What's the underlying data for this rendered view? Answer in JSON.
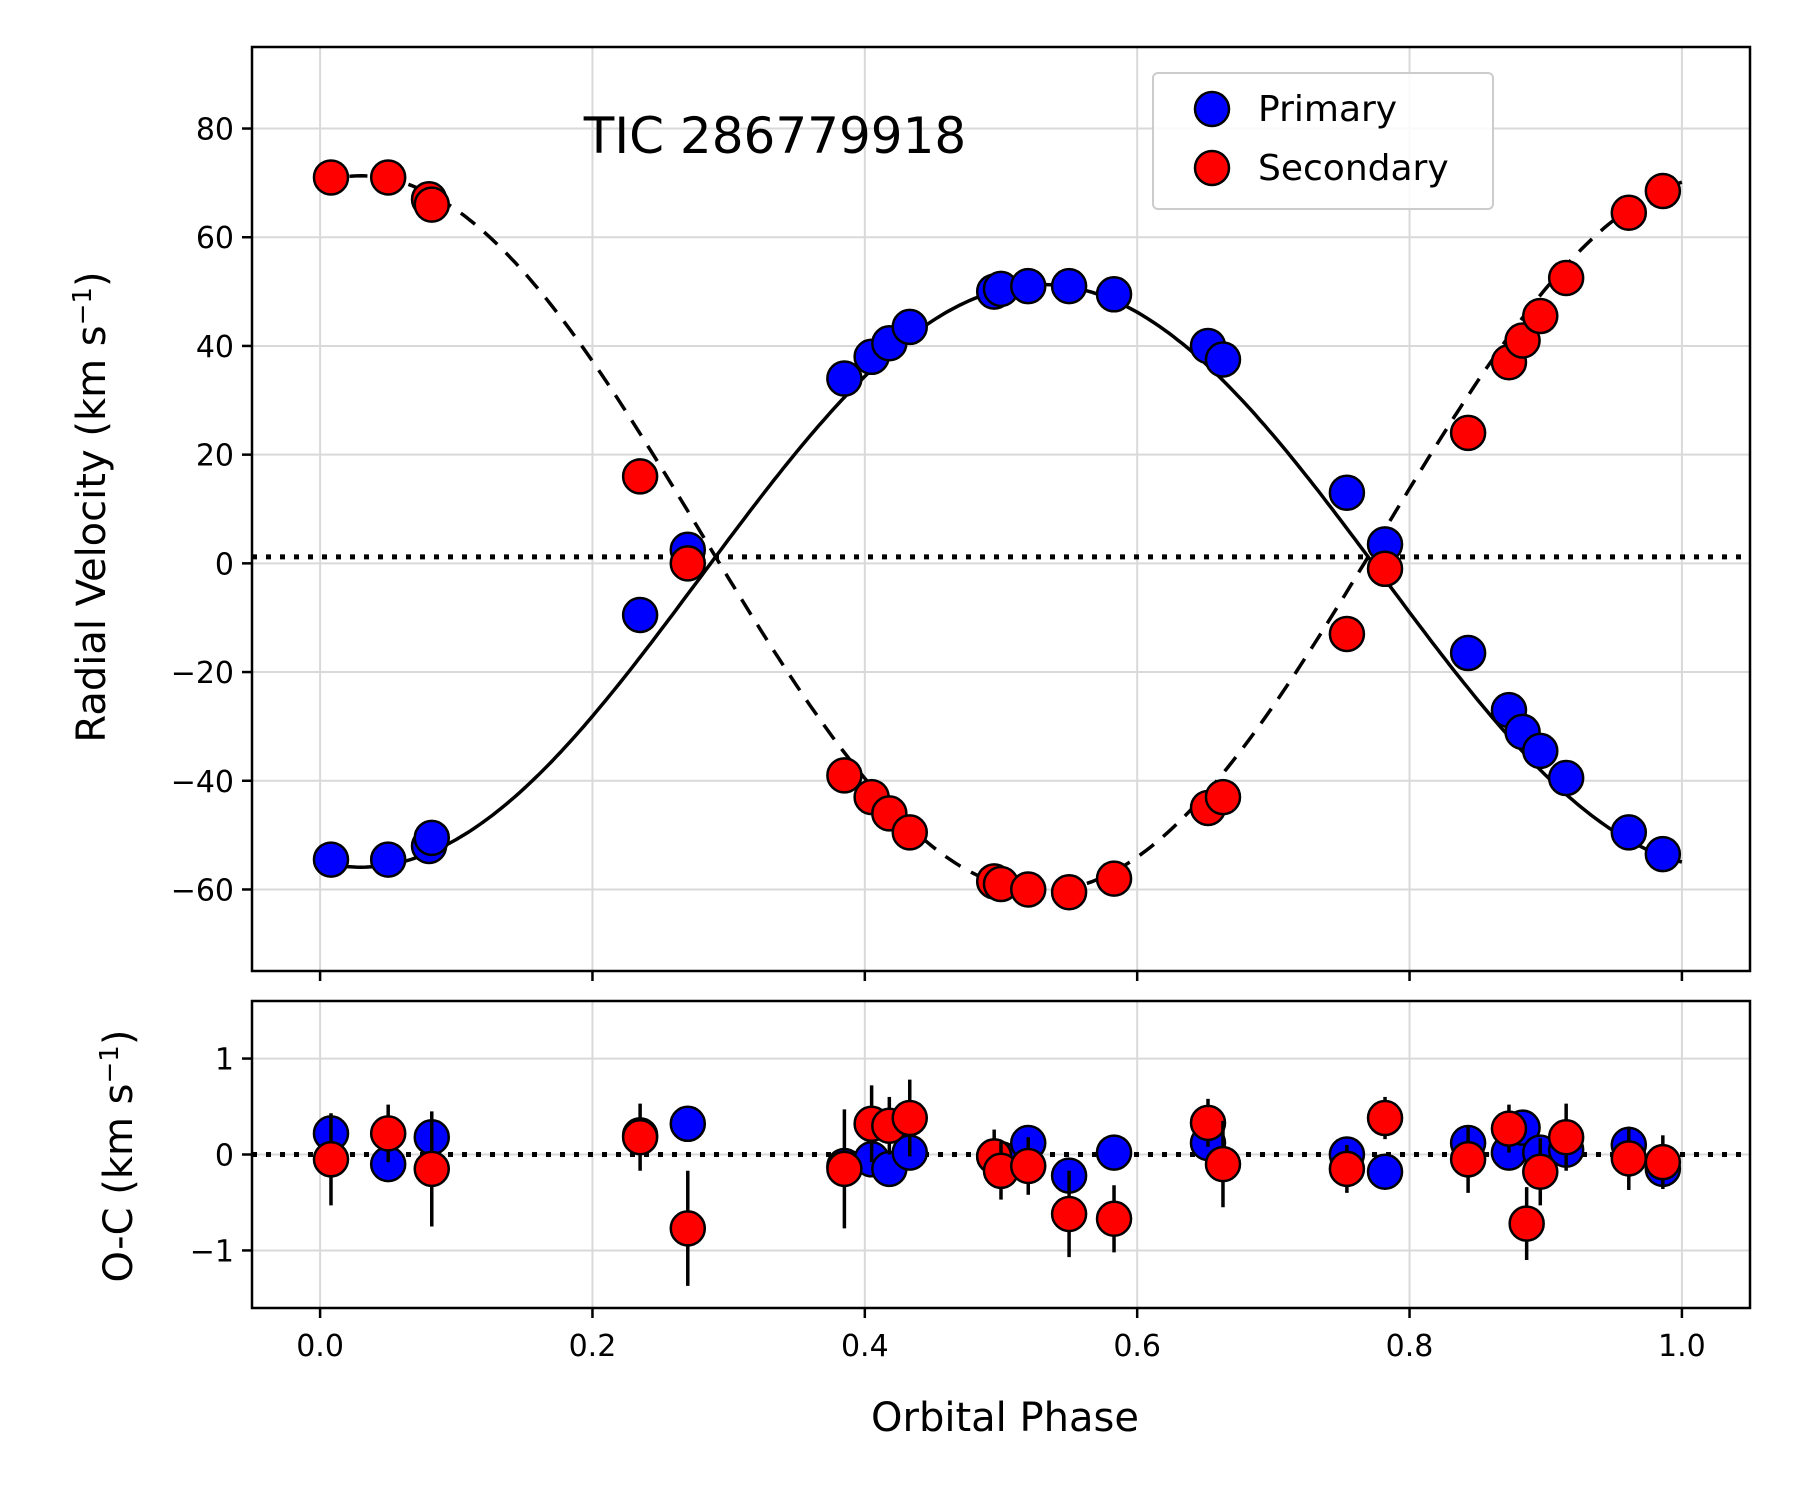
{
  "chart_data": [
    {
      "type": "scatter",
      "title": "TIC 286779918",
      "xlabel": "",
      "ylabel": "Radial Velocity (km s",
      "ylabel_sup": "−1",
      "ylabel_end": ")",
      "xlim": [
        -0.05,
        1.05
      ],
      "ylim": [
        -75,
        95
      ],
      "xticks": [
        0.0,
        0.2,
        0.4,
        0.6,
        0.8,
        1.0
      ],
      "yticks": [
        -60,
        -40,
        -20,
        0,
        20,
        40,
        60,
        80
      ],
      "ytick_labels": [
        "−60",
        "−40",
        "−20",
        "0",
        "20",
        "40",
        "60",
        "80"
      ],
      "grid": true,
      "legend_position": "top-right",
      "systemic_velocity": 1.2,
      "model": {
        "primary": {
          "gamma": -2.3,
          "K": 53.6
        },
        "secondary": {
          "gamma": 5.5,
          "K": 65.8
        }
      },
      "series": [
        {
          "name": "Primary",
          "color": "#0000ff",
          "x": [
            0.008,
            0.05,
            0.08,
            0.082,
            0.235,
            0.27,
            0.385,
            0.405,
            0.418,
            0.433,
            0.495,
            0.5,
            0.52,
            0.55,
            0.583,
            0.652,
            0.663,
            0.754,
            0.782,
            0.843,
            0.873,
            0.883,
            0.896,
            0.915,
            0.961,
            0.986
          ],
          "y": [
            -54.5,
            -54.5,
            -52,
            -50.5,
            -9.5,
            2.5,
            34,
            38,
            40.5,
            43.5,
            50,
            50.5,
            51,
            51,
            49.5,
            40,
            37.5,
            13,
            3.5,
            -16.5,
            -27,
            -31,
            -34.5,
            -39.5,
            -49.5,
            -53.5
          ]
        },
        {
          "name": "Secondary",
          "color": "#ff0000",
          "x": [
            0.008,
            0.05,
            0.08,
            0.082,
            0.235,
            0.27,
            0.385,
            0.405,
            0.418,
            0.433,
            0.495,
            0.5,
            0.52,
            0.55,
            0.583,
            0.652,
            0.663,
            0.754,
            0.782,
            0.843,
            0.873,
            0.883,
            0.896,
            0.915,
            0.961,
            0.986
          ],
          "y": [
            71,
            71,
            67,
            66,
            16,
            0,
            -39,
            -43,
            -46,
            -49.5,
            -58.5,
            -59,
            -60,
            -60.5,
            -58,
            -45,
            -43,
            -13,
            -1,
            24,
            37,
            41,
            45.5,
            52.5,
            64.5,
            68.5
          ]
        }
      ]
    },
    {
      "type": "scatter",
      "title": "",
      "xlabel": "Orbital Phase",
      "ylabel": "O-C (km s",
      "ylabel_sup": "−1",
      "ylabel_end": ")",
      "xlim": [
        -0.05,
        1.05
      ],
      "ylim": [
        -1.6,
        1.6
      ],
      "xticks": [
        0.0,
        0.2,
        0.4,
        0.6,
        0.8,
        1.0
      ],
      "xtick_labels": [
        "0.0",
        "0.2",
        "0.4",
        "0.6",
        "0.8",
        "1.0"
      ],
      "yticks": [
        -1,
        0,
        1
      ],
      "ytick_labels": [
        "−1",
        "0",
        "1"
      ],
      "grid": true,
      "series": [
        {
          "name": "Primary",
          "color": "#0000ff",
          "x": [
            0.008,
            0.05,
            0.082,
            0.235,
            0.27,
            0.385,
            0.405,
            0.418,
            0.433,
            0.495,
            0.5,
            0.52,
            0.55,
            0.583,
            0.652,
            0.754,
            0.782,
            0.843,
            0.873,
            0.883,
            0.896,
            0.915,
            0.961,
            0.986
          ],
          "y": [
            0.22,
            -0.1,
            0.18,
            0.2,
            0.32,
            -0.12,
            -0.05,
            -0.15,
            0.02,
            -0.02,
            -0.05,
            0.12,
            -0.22,
            0.02,
            0.12,
            0.0,
            -0.18,
            0.12,
            0.02,
            0.28,
            0.02,
            0.05,
            0.1,
            -0.15
          ],
          "err": [
            0.0,
            0.0,
            0.0,
            0.0,
            0.0,
            0.0,
            0.0,
            0.0,
            0.0,
            0.0,
            0.0,
            0.0,
            0.0,
            0.0,
            0.0,
            0.0,
            0.0,
            0.0,
            0.0,
            0.0,
            0.0,
            0.0,
            0.0,
            0.0
          ]
        },
        {
          "name": "Secondary",
          "color": "#ff0000",
          "x": [
            0.008,
            0.05,
            0.082,
            0.235,
            0.27,
            0.385,
            0.405,
            0.418,
            0.433,
            0.495,
            0.5,
            0.52,
            0.55,
            0.583,
            0.652,
            0.663,
            0.754,
            0.782,
            0.843,
            0.873,
            0.886,
            0.896,
            0.915,
            0.961,
            0.986
          ],
          "y": [
            -0.05,
            0.22,
            -0.15,
            0.18,
            -0.77,
            -0.15,
            0.32,
            0.3,
            0.38,
            -0.02,
            -0.17,
            -0.12,
            -0.62,
            -0.67,
            0.33,
            -0.1,
            -0.15,
            0.38,
            -0.05,
            0.27,
            -0.72,
            -0.18,
            0.18,
            -0.04,
            -0.08
          ],
          "err": [
            0.48,
            0.3,
            0.6,
            0.35,
            0.6,
            0.62,
            0.4,
            0.3,
            0.4,
            0.28,
            0.3,
            0.3,
            0.45,
            0.35,
            0.25,
            0.45,
            0.25,
            0.22,
            0.35,
            0.25,
            0.38,
            0.35,
            0.35,
            0.33,
            0.28
          ]
        }
      ]
    }
  ]
}
